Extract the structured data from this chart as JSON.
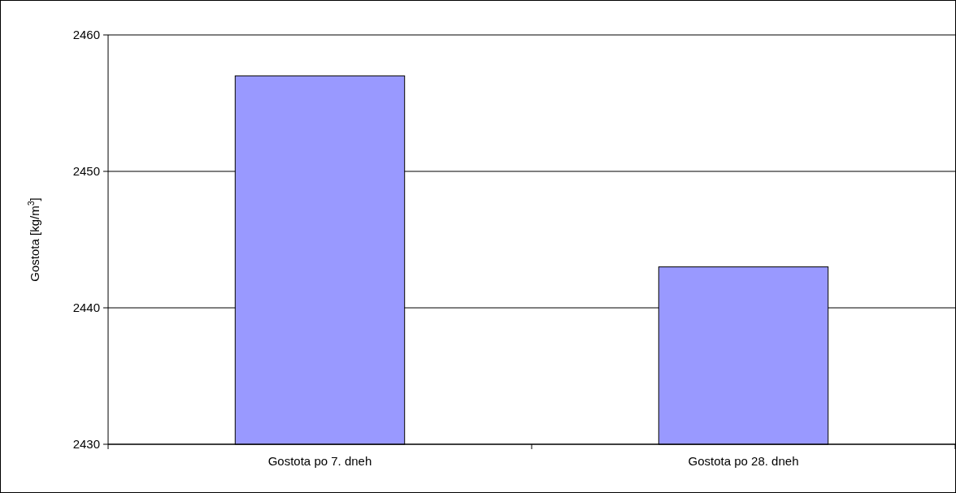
{
  "chart_data": {
    "type": "bar",
    "ylabel": "Gostota [kg/m$^{3}$]",
    "categories": [
      "Gostota po 7. dneh",
      "Gostota po 28. dneh"
    ],
    "values": [
      2457,
      2443
    ],
    "color": "#9999ff",
    "ylim": [
      2430,
      2460
    ],
    "yticks": [
      2430,
      2440,
      2450,
      2460
    ],
    "grid": "y"
  }
}
